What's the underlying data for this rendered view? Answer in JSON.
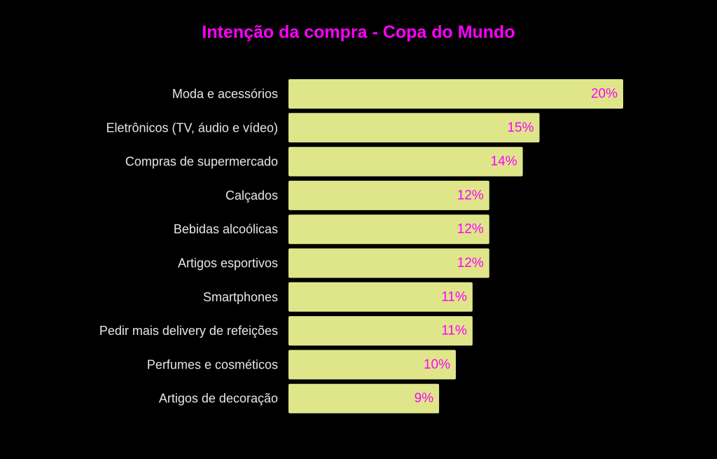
{
  "chart_data": {
    "type": "bar",
    "orientation": "horizontal",
    "title": "Intenção da compra - Copa do Mundo",
    "categories": [
      "Moda e acessórios",
      "Eletrônicos (TV, áudio e vídeo)",
      "Compras de supermercado",
      "Calçados",
      "Bebidas alcoólicas",
      "Artigos esportivos",
      "Smartphones",
      "Pedir mais delivery de refeições",
      "Perfumes e cosméticos",
      "Artigos de decoração"
    ],
    "values": [
      20,
      15,
      14,
      12,
      12,
      12,
      11,
      11,
      10,
      9
    ],
    "value_labels": [
      "20%",
      "15%",
      "14%",
      "12%",
      "12%",
      "12%",
      "11%",
      "11%",
      "10%",
      "9%"
    ],
    "xlim": [
      0,
      20
    ],
    "grid": false,
    "colors": {
      "background": "#000000",
      "bar": "#dfe68a",
      "title": "#ff00ff",
      "value_label": "#ff00ff",
      "category_label": "#e6e6e6"
    }
  }
}
